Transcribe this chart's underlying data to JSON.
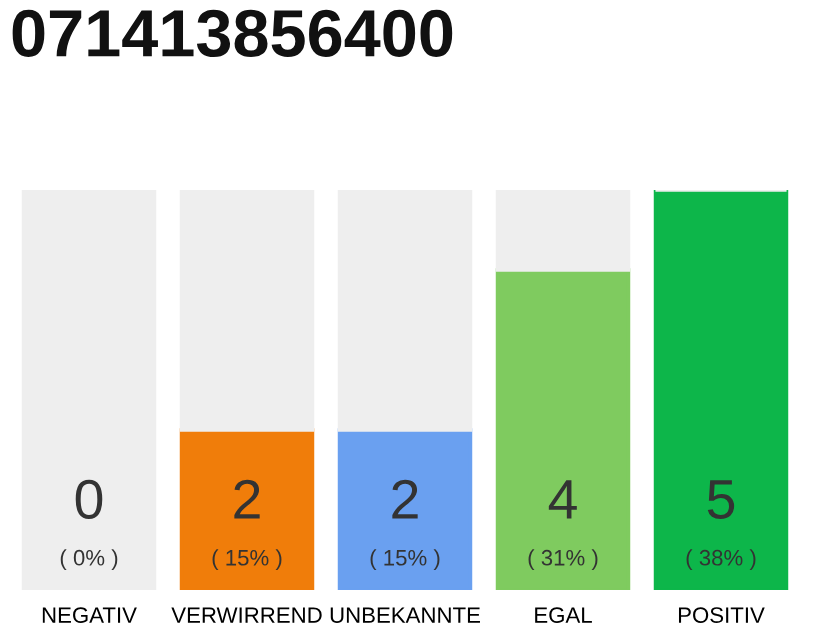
{
  "chart_data": {
    "type": "bar",
    "title": "071413856400",
    "stacked": true,
    "categories": [
      "NEGATIV",
      "VERWIRREND",
      "UNBEKANNTE",
      "EGAL",
      "POSITIV"
    ],
    "series": [
      {
        "colors": [
          "#555555",
          "#f07d0a",
          "#6aa0f0",
          "#7fcb5f",
          "#0db64a"
        ],
        "values": [
          0,
          2,
          2,
          4,
          5
        ],
        "value_labels": [
          "0\n( 0% )",
          "2\n( 15% )",
          "2\n( 15% )",
          "4\n( 31% )",
          "5\n( 38% )"
        ]
      },
      {
        "color": "#eeeeee",
        "values": [
          5,
          3,
          3,
          1,
          0
        ]
      }
    ],
    "ylim": [
      0,
      5
    ]
  }
}
